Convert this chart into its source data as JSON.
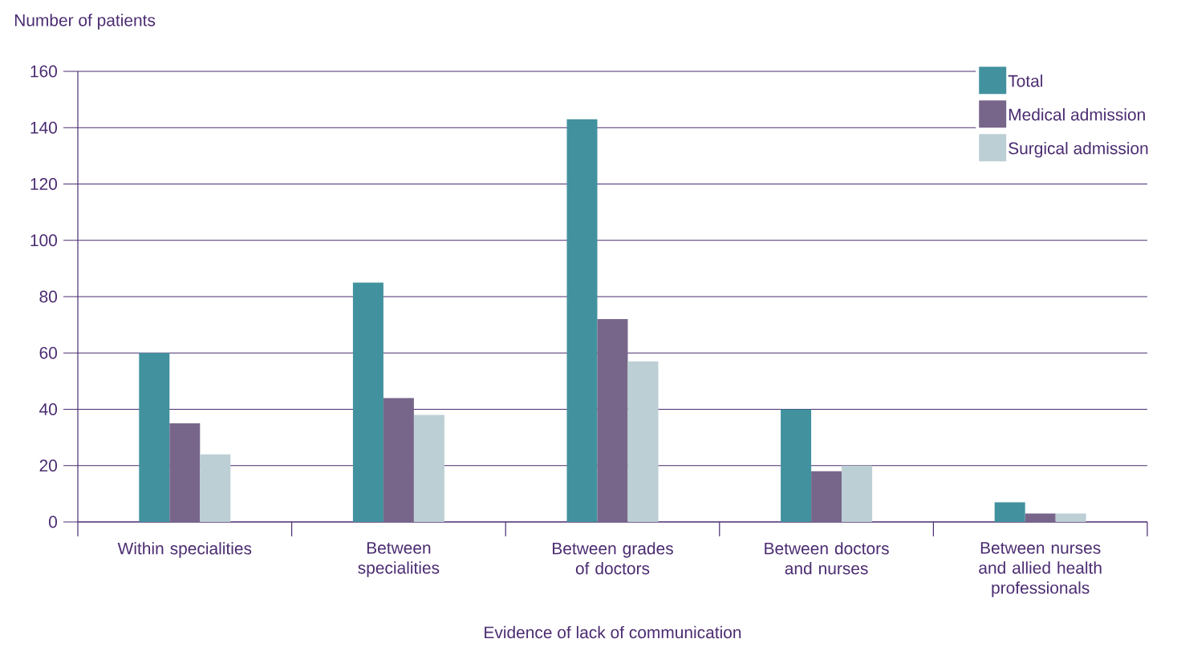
{
  "chart_data": {
    "type": "bar",
    "xlabel": "Evidence of lack of communication",
    "ylabel": "Number of patients",
    "categories": [
      "Within specialities",
      "Between specialities",
      "Between grades of doctors",
      "Between doctors and nurses",
      "Between nurses and allied health professionals"
    ],
    "series": [
      {
        "name": "Total",
        "color": "#41929e",
        "values": [
          60,
          85,
          143,
          40,
          7
        ]
      },
      {
        "name": "Medical admission",
        "color": "#77668a",
        "values": [
          35,
          44,
          72,
          18,
          3
        ]
      },
      {
        "name": "Surgical admission",
        "color": "#bccfd5",
        "values": [
          24,
          38,
          57,
          20,
          3
        ]
      }
    ],
    "ylim": [
      0,
      160
    ],
    "yticks": [
      0,
      20,
      40,
      60,
      80,
      100,
      120,
      140,
      160
    ],
    "grid": "y",
    "legend": "top right"
  }
}
